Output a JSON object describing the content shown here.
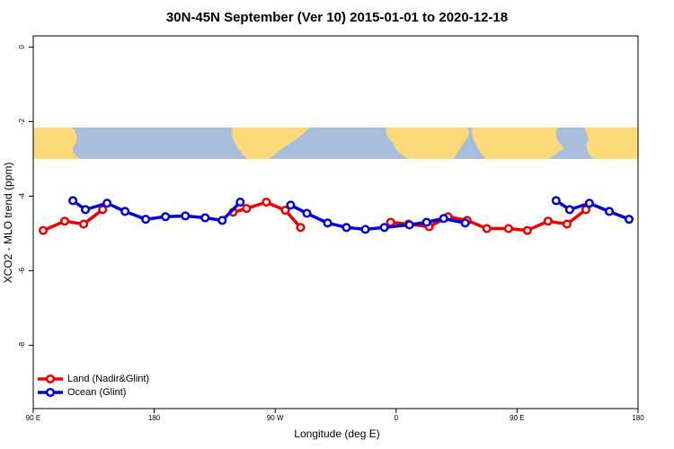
{
  "chart_data": {
    "type": "line",
    "title": "30N-45N September (Ver 10)   2015-01-01 to 2020-12-18",
    "x_label": "Longitude (deg E)",
    "y_label": "XCO2 - MLO trend (ppm)",
    "xlim": [
      90,
      540
    ],
    "ylim": [
      -9.7,
      0.3
    ],
    "xticks": [
      {
        "value": 90,
        "label": "90 E"
      },
      180,
      {
        "value": 270,
        "label": "90 W"
      },
      {
        "value": 360,
        "label": "0"
      },
      {
        "value": 450,
        "label": "90 E"
      },
      {
        "value": 540,
        "label": "180"
      }
    ],
    "yticks": [
      0,
      -2,
      -4,
      -6,
      -8
    ],
    "legend": "bottom-left",
    "series": [
      {
        "name": "Land (Nadir&Glint)",
        "color": "#ee0000",
        "x": [
          97.4,
          113.4,
          127.5,
          141.6,
          null,
          238.7,
          248.7,
          263.4,
          277.5,
          288.9,
          null,
          355.9,
          369.2,
          384.6,
          398.7,
          412.8,
          427.5,
          443.6,
          457.6,
          473.0,
          487.1,
          501.2
        ],
        "values": [
          -4.92,
          -4.67,
          -4.75,
          -4.36,
          null,
          -4.43,
          -4.33,
          -4.16,
          -4.38,
          -4.84,
          null,
          -4.7,
          -4.75,
          -4.82,
          -4.55,
          -4.65,
          -4.87,
          -4.87,
          -4.92,
          -4.67,
          -4.75,
          -4.36
        ]
      },
      {
        "name": "Ocean (Glint)",
        "color": "#0000dd",
        "x": [
          119.5,
          128.8,
          144.9,
          158.3,
          173.7,
          188.4,
          203.2,
          217.9,
          230.6,
          244.0,
          null,
          281.5,
          293.6,
          309.0,
          323.0,
          337.1,
          351.2,
          369.9,
          382.6,
          395.4,
          411.4,
          null,
          479.0,
          489.1,
          503.8,
          518.6,
          533.3
        ],
        "values": [
          -4.12,
          -4.36,
          -4.19,
          -4.41,
          -4.62,
          -4.55,
          -4.53,
          -4.58,
          -4.65,
          -4.16,
          null,
          -4.24,
          -4.46,
          -4.72,
          -4.84,
          -4.89,
          -4.84,
          -4.77,
          -4.7,
          -4.6,
          -4.72,
          null,
          -4.12,
          -4.36,
          -4.19,
          -4.41,
          -4.62
        ]
      }
    ]
  }
}
